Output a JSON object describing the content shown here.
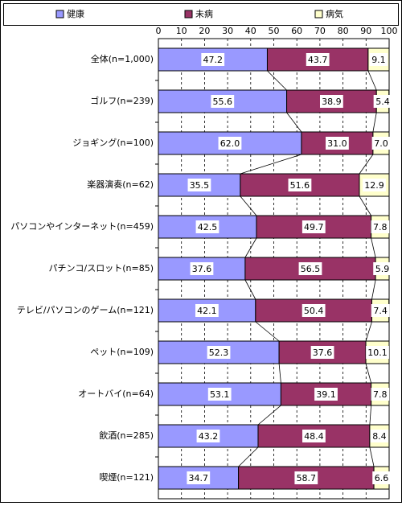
{
  "chart_data": {
    "type": "stacked-bar-horizontal",
    "categories": [
      "全体(n=1,000)",
      "ゴルフ(n=239)",
      "ジョギング(n=100)",
      "楽器演奏(n=62)",
      "パソコンやインターネット(n=459)",
      "パチンコ/スロット(n=85)",
      "テレビ/パソコンのゲーム(n=121)",
      "ペット(n=109)",
      "オートバイ(n=64)",
      "飲酒(n=285)",
      "喫煙(n=121)"
    ],
    "series": [
      {
        "name": "健康",
        "color": "#9999ff",
        "values": [
          47.2,
          55.6,
          62.0,
          35.5,
          42.5,
          37.6,
          42.1,
          52.3,
          53.1,
          43.2,
          34.7
        ],
        "value_labels": [
          "47.2",
          "55.6",
          "62.0",
          "35.5",
          "42.5",
          "37.6",
          "42.1",
          "52.3",
          "53.1",
          "43.2",
          "34.7"
        ]
      },
      {
        "name": "未病",
        "color": "#993366",
        "values": [
          43.7,
          38.9,
          31.0,
          51.6,
          49.7,
          56.5,
          50.4,
          37.6,
          39.1,
          48.4,
          58.7
        ],
        "value_labels": [
          "43.7",
          "38.9",
          "31.0",
          "51.6",
          "49.7",
          "56.5",
          "50.4",
          "37.6",
          "39.1",
          "48.4",
          "58.7"
        ]
      },
      {
        "name": "病気",
        "color": "#ffffcc",
        "values": [
          9.1,
          5.4,
          7.0,
          12.9,
          7.8,
          5.9,
          7.4,
          10.1,
          7.8,
          8.4,
          6.6
        ],
        "value_labels": [
          "9.1",
          "5.4",
          "7.0",
          "12.9",
          "7.8",
          "5.9",
          "7.4",
          "10.1",
          "7.8",
          "8.4",
          "6.6"
        ]
      }
    ],
    "xlim": [
      0,
      100
    ],
    "xticks": [
      0,
      10,
      20,
      30,
      40,
      50,
      60,
      70,
      80,
      90,
      100
    ],
    "grid": true
  }
}
